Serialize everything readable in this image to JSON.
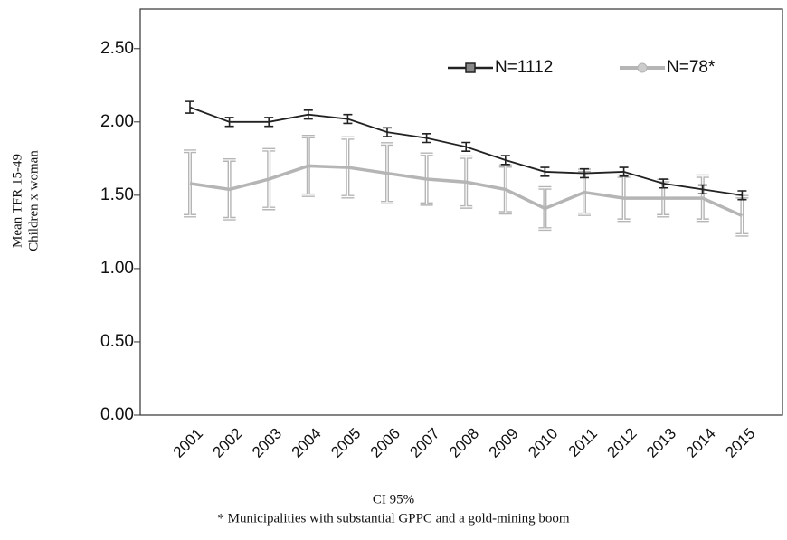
{
  "chart_data": {
    "type": "line",
    "categories": [
      "2001",
      "2002",
      "2003",
      "2004",
      "2005",
      "2006",
      "2007",
      "2008",
      "2009",
      "2010",
      "2011",
      "2012",
      "2013",
      "2014",
      "2015"
    ],
    "series": [
      {
        "name": "N=1112",
        "color": "#222222",
        "values": [
          2.1,
          2.0,
          2.0,
          2.05,
          2.02,
          1.93,
          1.89,
          1.83,
          1.74,
          1.66,
          1.65,
          1.66,
          1.58,
          1.54,
          1.5
        ],
        "errors": [
          0.04,
          0.03,
          0.03,
          0.03,
          0.03,
          0.03,
          0.03,
          0.03,
          0.03,
          0.03,
          0.03,
          0.03,
          0.03,
          0.03,
          0.03
        ]
      },
      {
        "name": "N=78*",
        "color": "#b5b5b5",
        "values": [
          1.58,
          1.54,
          1.61,
          1.7,
          1.69,
          1.65,
          1.61,
          1.59,
          1.54,
          1.41,
          1.52,
          1.48,
          1.48,
          1.48,
          1.36
        ],
        "errors": [
          0.22,
          0.2,
          0.2,
          0.2,
          0.2,
          0.2,
          0.17,
          0.17,
          0.16,
          0.14,
          0.15,
          0.15,
          0.12,
          0.15,
          0.13
        ]
      }
    ],
    "ylim": [
      0,
      2.77
    ],
    "yticks": [
      {
        "value": 0,
        "label": "0.00"
      },
      {
        "value": 0.5,
        "label": "0.50"
      },
      {
        "value": 1,
        "label": "1.00"
      },
      {
        "value": 1.5,
        "label": "1.50"
      },
      {
        "value": 2,
        "label": "2.00"
      },
      {
        "value": 2.5,
        "label": "2.50"
      }
    ],
    "ylabel": [
      "Mean TFR 15-49",
      "Children x woman"
    ],
    "notes": [
      "CI 95%",
      "* Municipalities with substantial GPPC and a gold-mining boom"
    ],
    "legend": "upper right",
    "grid": false
  }
}
